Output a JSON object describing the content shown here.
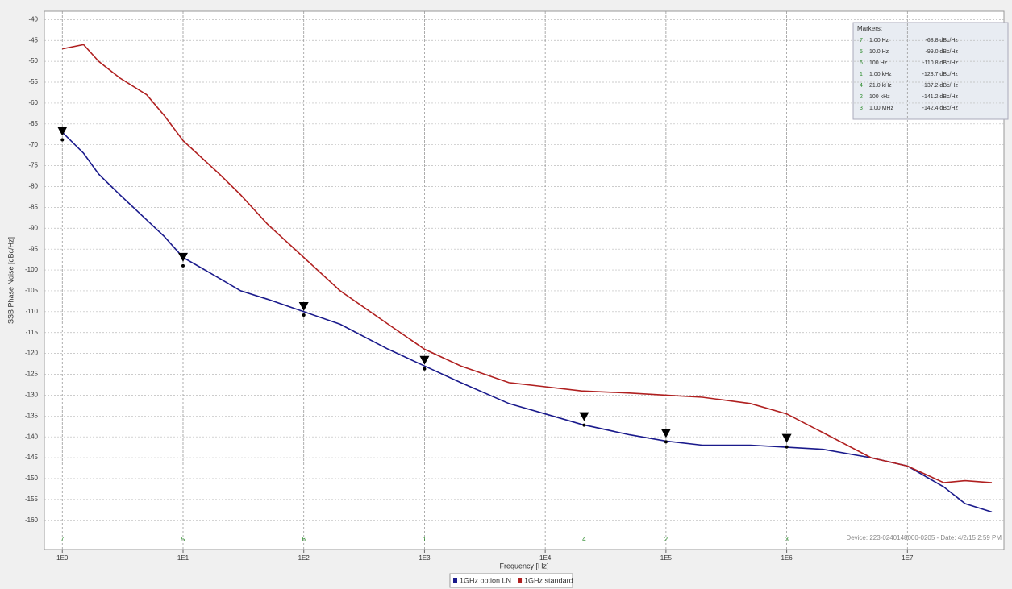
{
  "chart_data": {
    "type": "line",
    "xlabel": "Frequency [Hz]",
    "ylabel": "SSB Phase Noise [dBc/Hz]",
    "xscale": "log",
    "xlim": [
      0.71,
      63000000
    ],
    "ylim": [
      -167,
      -38
    ],
    "xticks": [
      {
        "value": 1,
        "label": "1E0"
      },
      {
        "value": 10,
        "label": "1E1"
      },
      {
        "value": 100,
        "label": "1E2"
      },
      {
        "value": 1000,
        "label": "1E3"
      },
      {
        "value": 10000,
        "label": "1E4"
      },
      {
        "value": 100000,
        "label": "1E5"
      },
      {
        "value": 1000000,
        "label": "1E6"
      },
      {
        "value": 10000000,
        "label": "1E7"
      }
    ],
    "yticks": [
      -40,
      -45,
      -50,
      -55,
      -60,
      -65,
      -70,
      -75,
      -80,
      -85,
      -90,
      -95,
      -100,
      -105,
      -110,
      -115,
      -120,
      -125,
      -130,
      -135,
      -140,
      -145,
      -150,
      -155,
      -160
    ],
    "grid": true,
    "legend": "bottom",
    "series": [
      {
        "name": "1GHz option LN",
        "color": "#1a1a8c",
        "x": [
          1,
          1.5,
          2,
          3,
          5,
          7,
          10,
          20,
          30,
          50,
          100,
          200,
          500,
          1000,
          2000,
          5000,
          10000,
          20000,
          50000,
          100000,
          200000,
          500000,
          1000000,
          2000000,
          5000000,
          10000000,
          20000000,
          30000000,
          50000000
        ],
        "values": [
          -67,
          -72,
          -77,
          -82,
          -88,
          -92,
          -97,
          -102,
          -105,
          -107,
          -110,
          -113,
          -119,
          -123,
          -127,
          -132,
          -134.5,
          -137,
          -139.5,
          -141,
          -142,
          -142,
          -142.5,
          -143,
          -145,
          -147,
          -152,
          -156,
          -158
        ]
      },
      {
        "name": "1GHz standard",
        "color": "#b02020",
        "x": [
          1,
          1.5,
          2,
          3,
          5,
          7,
          10,
          20,
          30,
          50,
          100,
          200,
          500,
          1000,
          2000,
          5000,
          10000,
          20000,
          50000,
          100000,
          200000,
          500000,
          1000000,
          2000000,
          5000000,
          10000000,
          20000000,
          30000000,
          50000000
        ],
        "values": [
          -47,
          -46,
          -50,
          -54,
          -58,
          -63,
          -69,
          -77,
          -82,
          -89,
          -97,
          -105,
          -113,
          -119,
          -123,
          -127,
          -128,
          -129,
          -129.5,
          -130,
          -130.5,
          -132,
          -134.5,
          -139,
          -145,
          -147,
          -151,
          -150.5,
          -151
        ]
      }
    ],
    "markers": {
      "title": "Markers:",
      "ids": [
        "7",
        "5",
        "6",
        "1",
        "4",
        "2",
        "3"
      ],
      "x": [
        1,
        10,
        100,
        1000,
        21000,
        100000,
        1000000
      ],
      "x_labels": [
        "1.00 Hz",
        "10.0 Hz",
        "100 Hz",
        "1.00 kHz",
        "21.0 kHz",
        "100 kHz",
        "1.00 MHz"
      ],
      "values": [
        -68.8,
        -99.0,
        -110.8,
        -123.7,
        -137.2,
        -141.2,
        -142.4
      ],
      "value_labels": [
        "-68.8 dBc/Hz",
        "-99.0 dBc/Hz",
        "-110.8 dBc/Hz",
        "-123.7 dBc/Hz",
        "-137.2 dBc/Hz",
        "-141.2 dBc/Hz",
        "-142.4 dBc/Hz"
      ]
    },
    "footnote": "Device: 223-0240148000-0205 - Date: 4/2/15 2:59 PM"
  }
}
